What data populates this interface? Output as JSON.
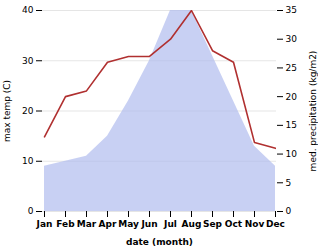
{
  "chart_data": {
    "type": "line",
    "categories": [
      "Jan",
      "Feb",
      "Mar",
      "Apr",
      "May",
      "Jun",
      "Jul",
      "Aug",
      "Sep",
      "Oct",
      "Nov",
      "Dec"
    ],
    "series": [
      {
        "type": "area",
        "color": "#b0bcee",
        "values": [
          9,
          10,
          11,
          15,
          22,
          30,
          40,
          40,
          31,
          22,
          13,
          9
        ]
      },
      {
        "type": "line",
        "color": "#b03030",
        "axis": "y2",
        "values": [
          13,
          20,
          21,
          26,
          27,
          27,
          30,
          35,
          28,
          26,
          12,
          11
        ]
      }
    ],
    "xlabel": "date (month)",
    "ylabel": "max temp (C)",
    "y2label": "med. precipitation (kg/m2)",
    "ylim": [
      0,
      40
    ],
    "yticks": [
      0,
      10,
      20,
      30,
      40
    ],
    "y2lim": [
      0,
      35
    ],
    "y2ticks": [
      0,
      5,
      10,
      15,
      20,
      25,
      30,
      35
    ],
    "grid": true
  }
}
